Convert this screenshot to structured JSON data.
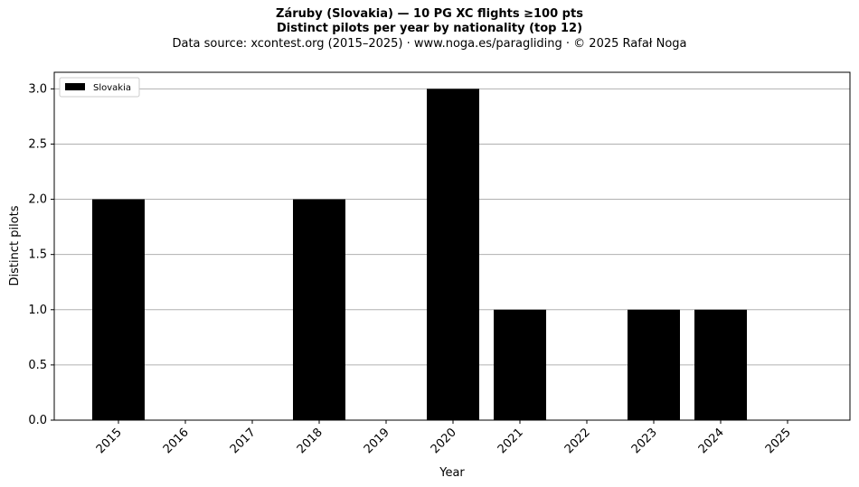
{
  "header": {
    "title_line1": "Záruby (Slovakia)  —  10 PG XC flights ≥100 pts",
    "title_line2": "Distinct pilots per year by nationality (top 12)",
    "subtitle": "Data source: xcontest.org (2015–2025)  ·  www.noga.es/paragliding  ·  © 2025 Rafał Noga"
  },
  "chart_data": {
    "type": "bar",
    "title": "Záruby (Slovakia)  —  10 PG XC flights ≥100 pts\nDistinct pilots per year by nationality (top 12)",
    "subtitle": "Data source: xcontest.org (2015–2025)  ·  www.noga.es/paragliding  ·  © 2025 Rafał Noga",
    "xlabel": "Year",
    "ylabel": "Distinct pilots",
    "categories": [
      "2015",
      "2016",
      "2017",
      "2018",
      "2019",
      "2020",
      "2021",
      "2022",
      "2023",
      "2024",
      "2025"
    ],
    "series": [
      {
        "name": "Slovakia",
        "color": "#000000",
        "values": [
          2,
          0,
          0,
          2,
          0,
          3,
          1,
          0,
          1,
          1,
          0
        ]
      }
    ],
    "yticks": [
      "0.0",
      "0.5",
      "1.0",
      "1.5",
      "2.0",
      "2.5",
      "3.0"
    ],
    "ylim": [
      0,
      3.15
    ],
    "grid": "horizontal",
    "legend_position": "top-left"
  }
}
